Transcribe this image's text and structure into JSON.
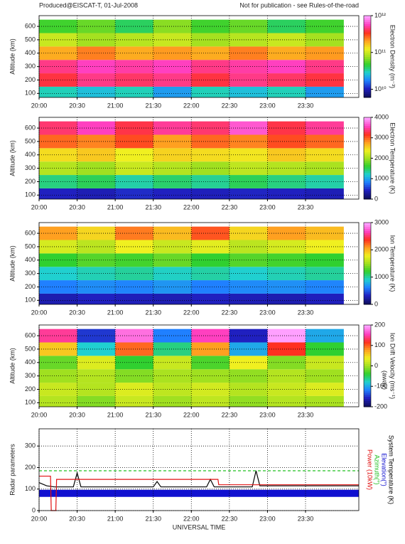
{
  "header": {
    "left": "Produced@EISCAT-T, 01-Jul-2008",
    "right": "Not for publication - see Rules-of-the-road"
  },
  "colormap": [
    "#101060",
    "#2020c0",
    "#2080ff",
    "#20d0d0",
    "#30d030",
    "#a0e020",
    "#f0f020",
    "#ffa020",
    "#ff3020",
    "#ff40c0",
    "#ffa0ff"
  ],
  "chart_data": [
    {
      "type": "heatmap",
      "ylabel": "Altitude (km)",
      "colorbar_label": "Electron Density (m⁻³)",
      "clog": true,
      "clim": [
        6000000000,
        1000000000000
      ],
      "cticks": [
        {
          "value": 10000000000,
          "label": "10¹⁰"
        },
        {
          "value": 100000000000,
          "label": "10¹¹"
        },
        {
          "value": 1000000000000,
          "label": "10¹²"
        }
      ],
      "x": [
        20.25,
        20.75,
        21.25,
        21.75,
        22.25,
        22.75,
        23.25,
        23.75
      ],
      "y": [
        100,
        200,
        300,
        400,
        500,
        600
      ],
      "z": [
        [
          30000000000,
          25000000000,
          30000000000,
          20000000000,
          30000000000,
          25000000000,
          30000000000,
          20000000000
        ],
        [
          400000000000,
          500000000000,
          450000000000,
          500000000000,
          400000000000,
          500000000000,
          450000000000,
          400000000000
        ],
        [
          500000000000,
          600000000000,
          550000000000,
          600000000000,
          500000000000,
          550000000000,
          600000000000,
          500000000000
        ],
        [
          200000000000,
          250000000000,
          200000000000,
          220000000000,
          200000000000,
          250000000000,
          200000000000,
          220000000000
        ],
        [
          100000000000,
          80000000000,
          90000000000,
          100000000000,
          80000000000,
          90000000000,
          100000000000,
          80000000000
        ],
        [
          50000000000,
          60000000000,
          40000000000,
          70000000000,
          50000000000,
          60000000000,
          40000000000,
          50000000000
        ]
      ],
      "xlim": [
        20,
        24.2
      ],
      "ylim": [
        70,
        680
      ],
      "yticks": [
        100,
        200,
        300,
        400,
        500,
        600
      ],
      "grid": true,
      "xticks": [
        {
          "value": 20,
          "label": "20:00"
        },
        {
          "value": 20.5,
          "label": "20:30"
        },
        {
          "value": 21,
          "label": "21:00"
        },
        {
          "value": 21.5,
          "label": "21:30"
        },
        {
          "value": 22,
          "label": "22:00"
        },
        {
          "value": 22.5,
          "label": "22:30"
        },
        {
          "value": 23,
          "label": "23:00"
        },
        {
          "value": 23.5,
          "label": "23:30"
        }
      ]
    },
    {
      "type": "heatmap",
      "ylabel": "Altitude (km)",
      "colorbar_label": "Electron Temperature (K)",
      "clog": false,
      "clim": [
        0,
        4000
      ],
      "cticks": [
        0,
        1000,
        2000,
        3000,
        4000
      ],
      "x": [
        20.25,
        20.75,
        21.25,
        21.75,
        22.25,
        22.75,
        23.25,
        23.75
      ],
      "y": [
        100,
        200,
        300,
        400,
        500,
        600
      ],
      "z": [
        [
          400,
          350,
          450,
          400,
          380,
          420,
          400,
          360
        ],
        [
          1400,
          1500,
          1300,
          1450,
          1350,
          1500,
          1400,
          1300
        ],
        [
          2100,
          2000,
          2200,
          2100,
          2000,
          2150,
          2100,
          2050
        ],
        [
          2500,
          2600,
          2400,
          2550,
          2500,
          2450,
          2600,
          2500
        ],
        [
          3000,
          2900,
          3100,
          2800,
          3000,
          2900,
          3100,
          3000
        ],
        [
          3400,
          3600,
          3300,
          3500,
          3400,
          3700,
          3300,
          3500
        ]
      ],
      "xlim": [
        20,
        24.2
      ],
      "ylim": [
        70,
        680
      ],
      "yticks": [
        100,
        200,
        300,
        400,
        500,
        600
      ],
      "grid": true,
      "xticks": [
        {
          "value": 20,
          "label": "20:00"
        },
        {
          "value": 20.5,
          "label": "20:30"
        },
        {
          "value": 21,
          "label": "21:00"
        },
        {
          "value": 21.5,
          "label": "21:30"
        },
        {
          "value": 22,
          "label": "22:00"
        },
        {
          "value": 22.5,
          "label": "22:30"
        },
        {
          "value": 23,
          "label": "23:00"
        },
        {
          "value": 23.5,
          "label": "23:30"
        }
      ]
    },
    {
      "type": "heatmap",
      "ylabel": "Altitude (km)",
      "colorbar_label": "Ion Temperature (K)",
      "clog": false,
      "clim": [
        0,
        3000
      ],
      "cticks": [
        0,
        1000,
        2000,
        3000
      ],
      "x": [
        20.25,
        20.75,
        21.25,
        21.75,
        22.25,
        22.75,
        23.25,
        23.75
      ],
      "y": [
        100,
        200,
        300,
        400,
        500,
        600
      ],
      "z": [
        [
          250,
          300,
          280,
          260,
          300,
          270,
          250,
          290
        ],
        [
          600,
          650,
          620,
          680,
          600,
          640,
          660,
          620
        ],
        [
          900,
          950,
          1000,
          920,
          980,
          900,
          950,
          1000
        ],
        [
          1200,
          1300,
          1250,
          1350,
          1200,
          1300,
          1250,
          1200
        ],
        [
          1700,
          1600,
          1800,
          1650,
          1750,
          1600,
          1700,
          1800
        ],
        [
          2100,
          1900,
          2200,
          2000,
          2300,
          1900,
          2100,
          2000
        ]
      ],
      "xlim": [
        20,
        24.2
      ],
      "ylim": [
        70,
        680
      ],
      "yticks": [
        100,
        200,
        300,
        400,
        500,
        600
      ],
      "grid": true,
      "xticks": [
        {
          "value": 20,
          "label": "20:00"
        },
        {
          "value": 20.5,
          "label": "20:30"
        },
        {
          "value": 21,
          "label": "21:00"
        },
        {
          "value": 21.5,
          "label": "21:30"
        },
        {
          "value": 22,
          "label": "22:00"
        },
        {
          "value": 22.5,
          "label": "22:30"
        },
        {
          "value": 23,
          "label": "23:00"
        },
        {
          "value": 23.5,
          "label": "23:30"
        }
      ]
    },
    {
      "type": "heatmap",
      "ylabel": "Altitude (km)",
      "colorbar_label": "Ion Drift Velocity (ms⁻¹)",
      "colorbar_note": "(away)",
      "clog": false,
      "clim": [
        -200,
        200
      ],
      "cticks": [
        -200,
        -100,
        0,
        100,
        200
      ],
      "x": [
        20.25,
        20.75,
        21.25,
        21.75,
        22.25,
        22.75,
        23.25,
        23.75
      ],
      "y": [
        100,
        200,
        300,
        400,
        500,
        600
      ],
      "z": [
        [
          10,
          -10,
          20,
          0,
          15,
          -5,
          10,
          5
        ],
        [
          20,
          10,
          30,
          15,
          25,
          10,
          20,
          30
        ],
        [
          0,
          10,
          -10,
          5,
          0,
          -5,
          10,
          0
        ],
        [
          -20,
          30,
          -40,
          20,
          -30,
          40,
          -10,
          20
        ],
        [
          60,
          -80,
          100,
          -60,
          80,
          -100,
          120,
          -40
        ],
        [
          150,
          -150,
          180,
          -120,
          160,
          -160,
          200,
          -100
        ]
      ],
      "xlim": [
        20,
        24.2
      ],
      "ylim": [
        70,
        680
      ],
      "yticks": [
        100,
        200,
        300,
        400,
        500,
        600
      ],
      "grid": true,
      "xticks": [
        {
          "value": 20,
          "label": "20:00"
        },
        {
          "value": 20.5,
          "label": "20:30"
        },
        {
          "value": 21,
          "label": "21:00"
        },
        {
          "value": 21.5,
          "label": "21:30"
        },
        {
          "value": 22,
          "label": "22:00"
        },
        {
          "value": 22.5,
          "label": "22:30"
        },
        {
          "value": 23,
          "label": "23:00"
        },
        {
          "value": 23.5,
          "label": "23:30"
        }
      ]
    },
    {
      "type": "line",
      "ylabel": "Radar parameters",
      "xlabel": "UNIVERSAL TIME",
      "xlim": [
        20,
        24.2
      ],
      "ylim": [
        0,
        380
      ],
      "yticks": [
        0,
        100,
        200,
        300
      ],
      "grid": true,
      "xticks": [
        {
          "value": 20,
          "label": "20:00"
        },
        {
          "value": 20.5,
          "label": "20:30"
        },
        {
          "value": 21,
          "label": "21:00"
        },
        {
          "value": 21.5,
          "label": "21:30"
        },
        {
          "value": 22,
          "label": "22:00"
        },
        {
          "value": 22.5,
          "label": "22:30"
        },
        {
          "value": 23,
          "label": "23:00"
        },
        {
          "value": 23.5,
          "label": "23:30"
        }
      ],
      "series": [
        {
          "name": "System Temperature (K)",
          "color": "#000000",
          "x": [
            20,
            20.1,
            20.2,
            20.45,
            20.5,
            20.55,
            20.6,
            21.5,
            21.55,
            21.6,
            22.2,
            22.25,
            22.3,
            22.8,
            22.85,
            22.9,
            24.2
          ],
          "values": [
            130,
            115,
            110,
            110,
            175,
            110,
            110,
            110,
            135,
            110,
            110,
            145,
            110,
            110,
            185,
            115,
            115
          ]
        },
        {
          "name": "Elevation(°)",
          "color": "#1010d0",
          "width": 10,
          "x": [
            20,
            24.2
          ],
          "values": [
            80,
            80
          ]
        },
        {
          "name": "Azimuth(°)",
          "color": "#20c020",
          "dash": true,
          "x": [
            20,
            24.2
          ],
          "values": [
            185,
            185
          ]
        },
        {
          "name": "Power (10kW)",
          "color": "#e01010",
          "x": [
            20,
            20.15,
            20.16,
            20.22,
            20.23,
            22.35,
            22.36,
            24.2
          ],
          "values": [
            160,
            160,
            0,
            0,
            145,
            145,
            120,
            120
          ]
        }
      ]
    }
  ]
}
